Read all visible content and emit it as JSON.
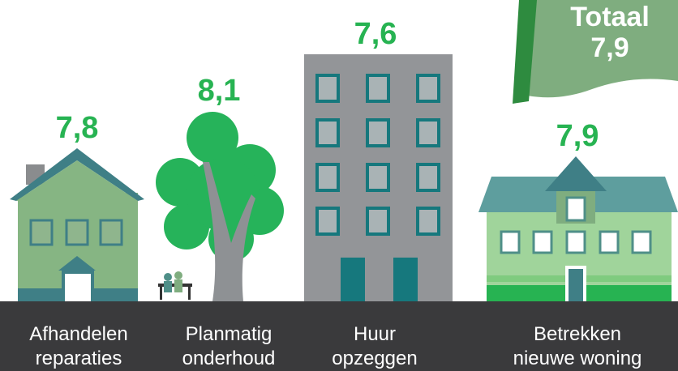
{
  "total": {
    "label": "Totaal",
    "score": "7,9"
  },
  "items": [
    {
      "score": "7,8",
      "label_lines": [
        "Afhandelen",
        "reparaties"
      ]
    },
    {
      "score": "8,1",
      "label_lines": [
        "Planmatig",
        "onderhoud"
      ]
    },
    {
      "score": "7,6",
      "label_lines": [
        "Huur",
        "opzeggen"
      ]
    },
    {
      "score": "7,9",
      "label_lines": [
        "Betrekken",
        "nieuwe woning"
      ]
    }
  ]
}
